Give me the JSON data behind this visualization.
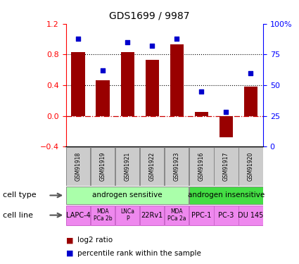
{
  "title": "GDS1699 / 9987",
  "samples": [
    "GSM91918",
    "GSM91919",
    "GSM91921",
    "GSM91922",
    "GSM91923",
    "GSM91916",
    "GSM91917",
    "GSM91920"
  ],
  "log2_ratio": [
    0.83,
    0.46,
    0.83,
    0.73,
    0.93,
    0.05,
    -0.28,
    0.38
  ],
  "percentile_rank": [
    88,
    62,
    85,
    82,
    88,
    45,
    28,
    60
  ],
  "ylim": [
    -0.4,
    1.2
  ],
  "y2lim": [
    0,
    100
  ],
  "yticks": [
    -0.4,
    0.0,
    0.4,
    0.8,
    1.2
  ],
  "y2ticks": [
    0,
    25,
    50,
    75,
    100
  ],
  "hlines": [
    0.4,
    0.8
  ],
  "bar_color": "#990000",
  "dot_color": "#0000cc",
  "zero_line_color": "#cc0000",
  "cell_type_groups": [
    {
      "label": "androgen sensitive",
      "start": 0,
      "end": 5,
      "color": "#aaffaa"
    },
    {
      "label": "androgen insensitive",
      "start": 5,
      "end": 8,
      "color": "#44dd44"
    }
  ],
  "cell_lines": [
    {
      "label": "LAPC-4",
      "start": 0,
      "end": 1,
      "multiline": false
    },
    {
      "label": "MDA\nPCa 2b",
      "start": 1,
      "end": 2,
      "multiline": true
    },
    {
      "label": "LNCa\nP",
      "start": 2,
      "end": 3,
      "multiline": true
    },
    {
      "label": "22Rv1",
      "start": 3,
      "end": 4,
      "multiline": false
    },
    {
      "label": "MDA\nPCa 2a",
      "start": 4,
      "end": 5,
      "multiline": true
    },
    {
      "label": "PPC-1",
      "start": 5,
      "end": 6,
      "multiline": false
    },
    {
      "label": "PC-3",
      "start": 6,
      "end": 7,
      "multiline": false
    },
    {
      "label": "DU 145",
      "start": 7,
      "end": 8,
      "multiline": false
    }
  ],
  "cell_line_color": "#ee88ee",
  "sample_box_color": "#cccccc",
  "legend_items": [
    {
      "label": "log2 ratio",
      "color": "#990000"
    },
    {
      "label": "percentile rank within the sample",
      "color": "#0000cc"
    }
  ],
  "bar_width": 0.55
}
